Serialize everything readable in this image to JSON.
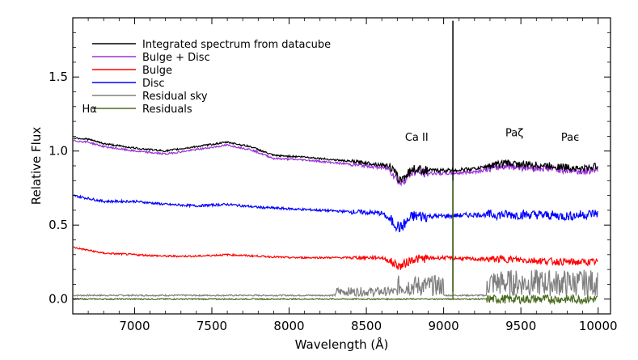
{
  "chart_data": {
    "type": "line",
    "title": "",
    "xlabel": "Wavelength (Å)",
    "ylabel": "Relative Flux",
    "xlim": [
      6600,
      10080
    ],
    "ylim": [
      -0.1,
      1.9
    ],
    "xticks": [
      7000,
      7500,
      8000,
      8500,
      9000,
      9500,
      10000
    ],
    "xtick_labels": [
      "7000",
      "7500",
      "8000",
      "8500",
      "9000",
      "9500",
      "10000"
    ],
    "yticks": [
      0.0,
      0.5,
      1.0,
      1.5
    ],
    "ytick_labels": [
      "0.0",
      "0.5",
      "1.0",
      "1.5"
    ],
    "grid": false,
    "legend_position": "top-left",
    "series": [
      {
        "name": "Integrated spectrum from datacube",
        "color": "#000000",
        "x": [
          6600,
          6700,
          6800,
          7000,
          7200,
          7400,
          7600,
          7750,
          7900,
          8100,
          8300,
          8500,
          8650,
          8720,
          8800,
          8900,
          9050,
          9200,
          9300,
          9400,
          9500,
          9700,
          9900,
          10000
        ],
        "y": [
          1.09,
          1.08,
          1.05,
          1.02,
          1.0,
          1.03,
          1.06,
          1.03,
          0.97,
          0.96,
          0.94,
          0.92,
          0.9,
          0.8,
          0.88,
          0.87,
          0.87,
          0.88,
          0.9,
          0.92,
          0.91,
          0.9,
          0.88,
          0.9
        ]
      },
      {
        "name": "Bulge + Disc",
        "color": "#9b30d9",
        "x": [
          6600,
          6700,
          6800,
          7000,
          7200,
          7400,
          7600,
          7750,
          7900,
          8100,
          8300,
          8500,
          8650,
          8720,
          8800,
          8900,
          9050,
          9200,
          9300,
          9400,
          9500,
          9700,
          9900,
          10000
        ],
        "y": [
          1.07,
          1.06,
          1.03,
          1.0,
          0.98,
          1.01,
          1.04,
          1.01,
          0.95,
          0.94,
          0.92,
          0.9,
          0.88,
          0.78,
          0.86,
          0.85,
          0.85,
          0.86,
          0.88,
          0.9,
          0.89,
          0.88,
          0.86,
          0.88
        ]
      },
      {
        "name": "Bulge",
        "color": "#ff0000",
        "x": [
          6600,
          6700,
          6800,
          7000,
          7200,
          7400,
          7600,
          7800,
          8000,
          8200,
          8400,
          8600,
          8720,
          8800,
          9000,
          9200,
          9400,
          9600,
          9800,
          10000
        ],
        "y": [
          0.35,
          0.33,
          0.31,
          0.3,
          0.29,
          0.29,
          0.3,
          0.29,
          0.28,
          0.28,
          0.28,
          0.28,
          0.22,
          0.27,
          0.28,
          0.27,
          0.27,
          0.26,
          0.25,
          0.25
        ]
      },
      {
        "name": "Disc",
        "color": "#0000ff",
        "x": [
          6600,
          6700,
          6800,
          7000,
          7200,
          7400,
          7600,
          7800,
          8000,
          8200,
          8400,
          8600,
          8720,
          8800,
          9000,
          9200,
          9400,
          9600,
          9800,
          10000
        ],
        "y": [
          0.7,
          0.68,
          0.66,
          0.66,
          0.64,
          0.63,
          0.64,
          0.62,
          0.61,
          0.6,
          0.59,
          0.58,
          0.48,
          0.56,
          0.56,
          0.57,
          0.57,
          0.57,
          0.56,
          0.58
        ]
      },
      {
        "name": "Residual sky",
        "color": "#7f7f7f",
        "x": [
          6600,
          7000,
          7500,
          8000,
          8500,
          8600,
          8800,
          9000,
          9300,
          9500,
          9700,
          10000
        ],
        "y": [
          0.02,
          0.02,
          0.03,
          0.03,
          0.04,
          0.06,
          0.08,
          0.05,
          0.1,
          0.08,
          0.06,
          0.05
        ]
      },
      {
        "name": "Residuals",
        "color": "#4b6b1e",
        "x": [
          6600,
          7000,
          7500,
          8000,
          8500,
          9000,
          9300,
          9500,
          10000
        ],
        "y": [
          0.0,
          0.0,
          0.0,
          0.0,
          0.0,
          0.0,
          0.0,
          0.0,
          0.0
        ]
      }
    ],
    "annotations": [
      {
        "text": "Hα",
        "x": 6660,
        "y": 1.26
      },
      {
        "text": "Ca II",
        "x": 8750,
        "y": 1.07
      },
      {
        "text": "Paζ",
        "x": 9400,
        "y": 1.1
      },
      {
        "text": "Paϵ",
        "x": 9760,
        "y": 1.07
      }
    ]
  }
}
